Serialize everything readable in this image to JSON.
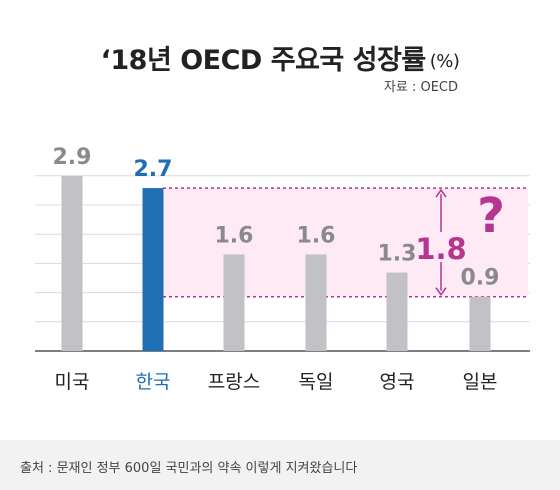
{
  "header": {
    "title": "‘18년 OECD 주요국 성장률",
    "unit": "(%)",
    "source": "자료 :  OECD"
  },
  "chart_data": {
    "type": "bar",
    "title": "‘18년 OECD 주요국 성장률 (%)",
    "categories": [
      "미국",
      "한국",
      "프랑스",
      "독일",
      "영국",
      "일본"
    ],
    "values": [
      2.9,
      2.7,
      1.6,
      1.6,
      1.3,
      0.9
    ],
    "value_labels": [
      "2.9",
      "2.7",
      "1.6",
      "1.6",
      "1.3",
      "0.9"
    ],
    "highlight_index": 1,
    "ylim": [
      0,
      3.2
    ],
    "grid": true,
    "annotation": {
      "text": "1.8",
      "mark": "?"
    }
  },
  "colors": {
    "bar": "#c2c2c6",
    "highlight": "#1f6fb5",
    "value_label": "#8a8a8a",
    "annotation": "#b5358f",
    "band": "#fdeaf5",
    "grid": "#dcdcdc"
  },
  "footer": {
    "text": "출처 : 문재인 정부 600일 국민과의 약속 이렇게 지켜왔습니다"
  }
}
